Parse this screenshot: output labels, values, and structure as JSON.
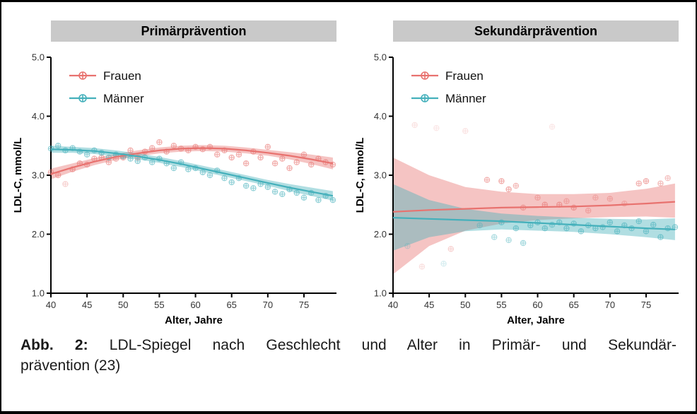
{
  "caption": {
    "label": "Abb. 2:",
    "line1": "LDL-Spiegel nach Geschlecht und Alter in Primär- und Sekundär-",
    "line2": "prävention (23)"
  },
  "colors": {
    "frauen": "#e8726f",
    "maenner": "#44b0bb",
    "header_bg": "#c9c9c9",
    "axis": "#000000",
    "tick_text": "#333333"
  },
  "chart_data": [
    {
      "type": "line",
      "title": "Primärprävention",
      "xlabel": "Alter, Jahre",
      "ylabel": "LDL-C, mmol/L",
      "xlim": [
        40,
        79.5
      ],
      "ylim": [
        1.0,
        5.0
      ],
      "x_ticks": [
        40,
        45,
        50,
        55,
        60,
        65,
        70,
        75
      ],
      "y_ticks": [
        "1.0",
        "2.0",
        "3.0",
        "4.0",
        "5.0"
      ],
      "legend_position": "top-left",
      "grid": false,
      "series": [
        {
          "name": "Frauen",
          "color": "#e8726f",
          "line": [
            [
              40,
              3.02
            ],
            [
              43,
              3.13
            ],
            [
              46,
              3.23
            ],
            [
              49,
              3.31
            ],
            [
              52,
              3.37
            ],
            [
              55,
              3.42
            ],
            [
              58,
              3.45
            ],
            [
              61,
              3.46
            ],
            [
              64,
              3.45
            ],
            [
              67,
              3.42
            ],
            [
              70,
              3.38
            ],
            [
              73,
              3.33
            ],
            [
              76,
              3.27
            ],
            [
              79,
              3.2
            ]
          ],
          "band": [
            [
              40,
              2.93,
              3.11
            ],
            [
              43,
              3.06,
              3.2
            ],
            [
              46,
              3.17,
              3.29
            ],
            [
              49,
              3.26,
              3.36
            ],
            [
              52,
              3.32,
              3.42
            ],
            [
              55,
              3.37,
              3.47
            ],
            [
              58,
              3.4,
              3.5
            ],
            [
              61,
              3.41,
              3.51
            ],
            [
              64,
              3.4,
              3.5
            ],
            [
              67,
              3.37,
              3.47
            ],
            [
              70,
              3.33,
              3.43
            ],
            [
              73,
              3.27,
              3.39
            ],
            [
              76,
              3.19,
              3.35
            ],
            [
              79,
              3.1,
              3.3
            ]
          ],
          "points": [
            [
              40,
              3.05
            ],
            [
              41,
              3.0
            ],
            [
              42,
              2.85,
              0.3
            ],
            [
              43,
              3.1
            ],
            [
              44,
              3.2
            ],
            [
              45,
              3.18
            ],
            [
              46,
              3.28
            ],
            [
              47,
              3.3
            ],
            [
              48,
              3.22
            ],
            [
              49,
              3.28
            ],
            [
              50,
              3.3
            ],
            [
              51,
              3.42
            ],
            [
              52,
              3.3
            ],
            [
              53,
              3.4
            ],
            [
              54,
              3.46
            ],
            [
              55,
              3.56
            ],
            [
              56,
              3.4
            ],
            [
              57,
              3.5
            ],
            [
              58,
              3.45
            ],
            [
              59,
              3.42
            ],
            [
              60,
              3.48
            ],
            [
              61,
              3.44
            ],
            [
              62,
              3.48
            ],
            [
              63,
              3.35
            ],
            [
              64,
              3.42
            ],
            [
              65,
              3.3
            ],
            [
              66,
              3.35
            ],
            [
              67,
              3.2
            ],
            [
              68,
              3.4
            ],
            [
              69,
              3.3
            ],
            [
              70,
              3.48
            ],
            [
              71,
              3.2
            ],
            [
              72,
              3.28
            ],
            [
              73,
              3.12
            ],
            [
              74,
              3.22
            ],
            [
              75,
              3.35
            ],
            [
              76,
              3.18
            ],
            [
              77,
              3.28
            ],
            [
              78,
              3.22
            ],
            [
              79,
              3.18
            ]
          ]
        },
        {
          "name": "Männer",
          "color": "#44b0bb",
          "line": [
            [
              40,
              3.44
            ],
            [
              43,
              3.43
            ],
            [
              46,
              3.41
            ],
            [
              49,
              3.37
            ],
            [
              52,
              3.32
            ],
            [
              55,
              3.26
            ],
            [
              58,
              3.19
            ],
            [
              61,
              3.11
            ],
            [
              64,
              3.03
            ],
            [
              67,
              2.95
            ],
            [
              70,
              2.87
            ],
            [
              73,
              2.79
            ],
            [
              76,
              2.72
            ],
            [
              79,
              2.65
            ]
          ],
          "band": [
            [
              40,
              3.38,
              3.5
            ],
            [
              43,
              3.38,
              3.48
            ],
            [
              46,
              3.36,
              3.46
            ],
            [
              49,
              3.32,
              3.42
            ],
            [
              52,
              3.27,
              3.37
            ],
            [
              55,
              3.21,
              3.31
            ],
            [
              58,
              3.14,
              3.24
            ],
            [
              61,
              3.06,
              3.16
            ],
            [
              64,
              2.98,
              3.08
            ],
            [
              67,
              2.9,
              3.0
            ],
            [
              70,
              2.82,
              2.92
            ],
            [
              73,
              2.73,
              2.85
            ],
            [
              76,
              2.65,
              2.79
            ],
            [
              79,
              2.57,
              2.73
            ]
          ],
          "points": [
            [
              40,
              3.45
            ],
            [
              41,
              3.5
            ],
            [
              42,
              3.42
            ],
            [
              43,
              3.46
            ],
            [
              44,
              3.4
            ],
            [
              45,
              3.35
            ],
            [
              46,
              3.42
            ],
            [
              47,
              3.38
            ],
            [
              48,
              3.3
            ],
            [
              49,
              3.35
            ],
            [
              50,
              3.32
            ],
            [
              51,
              3.28
            ],
            [
              52,
              3.24
            ],
            [
              53,
              3.3
            ],
            [
              54,
              3.22
            ],
            [
              55,
              3.28
            ],
            [
              56,
              3.2
            ],
            [
              57,
              3.12
            ],
            [
              58,
              3.22
            ],
            [
              59,
              3.1
            ],
            [
              60,
              3.12
            ],
            [
              61,
              3.05
            ],
            [
              62,
              3.0
            ],
            [
              63,
              3.08
            ],
            [
              64,
              2.95
            ],
            [
              65,
              2.88
            ],
            [
              66,
              2.95
            ],
            [
              67,
              2.82
            ],
            [
              68,
              2.78
            ],
            [
              69,
              2.85
            ],
            [
              70,
              2.8
            ],
            [
              71,
              2.72
            ],
            [
              72,
              2.68
            ],
            [
              73,
              2.76
            ],
            [
              74,
              2.7
            ],
            [
              75,
              2.62
            ],
            [
              76,
              2.7
            ],
            [
              77,
              2.58
            ],
            [
              78,
              2.65
            ],
            [
              79,
              2.58
            ]
          ]
        }
      ]
    },
    {
      "type": "line",
      "title": "Sekundärprävention",
      "xlabel": "Alter, Jahre",
      "ylabel": "LDL-C, mmol/L",
      "xlim": [
        40,
        79.5
      ],
      "ylim": [
        1.0,
        5.0
      ],
      "x_ticks": [
        40,
        45,
        50,
        55,
        60,
        65,
        70,
        75
      ],
      "y_ticks": [
        "1.0",
        "2.0",
        "3.0",
        "4.0",
        "5.0"
      ],
      "legend_position": "top-left",
      "grid": false,
      "series": [
        {
          "name": "Frauen",
          "color": "#e8726f",
          "line": [
            [
              40,
              2.38
            ],
            [
              45,
              2.41
            ],
            [
              50,
              2.43
            ],
            [
              55,
              2.45
            ],
            [
              60,
              2.46
            ],
            [
              65,
              2.47
            ],
            [
              70,
              2.49
            ],
            [
              75,
              2.52
            ],
            [
              79,
              2.55
            ]
          ],
          "band": [
            [
              40,
              1.32,
              3.3
            ],
            [
              45,
              1.8,
              3.0
            ],
            [
              50,
              2.06,
              2.8
            ],
            [
              55,
              2.18,
              2.72
            ],
            [
              60,
              2.24,
              2.68
            ],
            [
              65,
              2.27,
              2.68
            ],
            [
              70,
              2.29,
              2.7
            ],
            [
              75,
              2.3,
              2.77
            ],
            [
              79,
              2.28,
              2.86
            ]
          ],
          "points": [
            [
              43,
              3.85,
              0.18
            ],
            [
              46,
              3.8,
              0.15
            ],
            [
              44,
              1.45,
              0.2
            ],
            [
              48,
              1.75,
              0.3
            ],
            [
              50,
              3.75,
              0.18
            ],
            [
              53,
              2.92,
              0.5
            ],
            [
              55,
              2.9
            ],
            [
              56,
              2.76
            ],
            [
              57,
              2.82,
              0.45
            ],
            [
              58,
              2.45,
              0.5
            ],
            [
              60,
              2.62,
              0.4
            ],
            [
              61,
              2.5
            ],
            [
              62,
              3.82,
              0.15
            ],
            [
              63,
              2.5
            ],
            [
              64,
              2.56,
              0.4
            ],
            [
              65,
              2.45
            ],
            [
              67,
              2.4,
              0.4
            ],
            [
              68,
              2.62,
              0.35
            ],
            [
              70,
              2.6,
              0.4
            ],
            [
              72,
              2.52,
              0.35
            ],
            [
              74,
              2.86,
              0.5
            ],
            [
              75,
              2.9
            ],
            [
              77,
              2.86,
              0.45
            ],
            [
              78,
              2.95,
              0.4
            ]
          ]
        },
        {
          "name": "Männer",
          "color": "#44b0bb",
          "line": [
            [
              40,
              2.28
            ],
            [
              45,
              2.26
            ],
            [
              50,
              2.24
            ],
            [
              55,
              2.22
            ],
            [
              60,
              2.19
            ],
            [
              65,
              2.16
            ],
            [
              70,
              2.13
            ],
            [
              75,
              2.1
            ],
            [
              79,
              2.08
            ]
          ],
          "band": [
            [
              40,
              1.72,
              2.85
            ],
            [
              45,
              1.95,
              2.58
            ],
            [
              50,
              2.05,
              2.43
            ],
            [
              55,
              2.08,
              2.35
            ],
            [
              60,
              2.06,
              2.31
            ],
            [
              65,
              2.04,
              2.28
            ],
            [
              70,
              2.0,
              2.26
            ],
            [
              75,
              1.95,
              2.25
            ],
            [
              79,
              1.9,
              2.27
            ]
          ],
          "points": [
            [
              42,
              1.8,
              0.25
            ],
            [
              47,
              1.5,
              0.2
            ],
            [
              52,
              2.15,
              0.4
            ],
            [
              54,
              1.95,
              0.4
            ],
            [
              55,
              2.2
            ],
            [
              56,
              1.9,
              0.4
            ],
            [
              57,
              2.1
            ],
            [
              58,
              1.85,
              0.45
            ],
            [
              59,
              2.15
            ],
            [
              60,
              2.2
            ],
            [
              61,
              2.1
            ],
            [
              62,
              2.16,
              0.5
            ],
            [
              63,
              2.2
            ],
            [
              64,
              2.1
            ],
            [
              65,
              2.18
            ],
            [
              66,
              2.05
            ],
            [
              67,
              2.15
            ],
            [
              68,
              2.1
            ],
            [
              69,
              2.12
            ],
            [
              70,
              2.2
            ],
            [
              71,
              2.05
            ],
            [
              72,
              2.15
            ],
            [
              73,
              2.1
            ],
            [
              74,
              2.22
            ],
            [
              75,
              2.05
            ],
            [
              76,
              2.16
            ],
            [
              77,
              1.95
            ],
            [
              78,
              2.1
            ],
            [
              79,
              2.12
            ]
          ]
        }
      ]
    }
  ]
}
